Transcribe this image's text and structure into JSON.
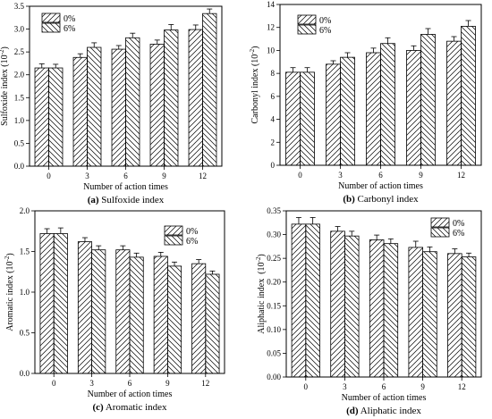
{
  "legend": {
    "series_a": "0%",
    "series_b": "6%"
  },
  "chart_data": [
    {
      "type": "bar",
      "caption_letter": "(a)",
      "caption_text": " Sulfoxide index",
      "xlabel": "Number of action times",
      "ylabel_main": "Sulfoxide index (10",
      "ylabel_exp": "-2",
      "ylabel_end": ")",
      "categories": [
        "0",
        "3",
        "6",
        "9",
        "12"
      ],
      "ylim": [
        0,
        3.5
      ],
      "yticks": [
        "0.0",
        "0.5",
        "1.0",
        "1.5",
        "2.0",
        "2.5",
        "3.0",
        "3.5"
      ],
      "legend_position": "top-left",
      "series": [
        {
          "name": "0%",
          "values": [
            2.15,
            2.38,
            2.56,
            2.67,
            2.99
          ],
          "errors": [
            0.09,
            0.08,
            0.08,
            0.09,
            0.1
          ]
        },
        {
          "name": "6%",
          "values": [
            2.15,
            2.6,
            2.81,
            2.98,
            3.34
          ],
          "errors": [
            0.08,
            0.1,
            0.1,
            0.12,
            0.1
          ]
        }
      ]
    },
    {
      "type": "bar",
      "caption_letter": "(b)",
      "caption_text": " Carbonyl index",
      "xlabel": "Number of action times",
      "ylabel_main": "Carbonyl index (10",
      "ylabel_exp": "-2",
      "ylabel_end": ")",
      "categories": [
        "0",
        "3",
        "6",
        "9",
        "12"
      ],
      "ylim": [
        0,
        14
      ],
      "yticks": [
        "0",
        "2",
        "4",
        "6",
        "8",
        "10",
        "12",
        "14"
      ],
      "legend_position": "top-left",
      "series": [
        {
          "name": "0%",
          "values": [
            8.1,
            8.8,
            9.8,
            10.0,
            10.8
          ],
          "errors": [
            0.4,
            0.3,
            0.4,
            0.4,
            0.4
          ]
        },
        {
          "name": "6%",
          "values": [
            8.1,
            9.4,
            10.6,
            11.4,
            12.1
          ],
          "errors": [
            0.4,
            0.4,
            0.5,
            0.5,
            0.5
          ]
        }
      ]
    },
    {
      "type": "bar",
      "caption_letter": "(c)",
      "caption_text": " Aromatic index",
      "xlabel": "Number of action times",
      "ylabel_main": "Aromatic index (10",
      "ylabel_exp": "-2",
      "ylabel_end": ")",
      "categories": [
        "0",
        "3",
        "6",
        "9",
        "12"
      ],
      "ylim": [
        0,
        2.0
      ],
      "yticks": [
        "0.0",
        "0.5",
        "1.0",
        "1.5",
        "2.0"
      ],
      "legend_position": "top-right",
      "series": [
        {
          "name": "0%",
          "values": [
            1.72,
            1.62,
            1.52,
            1.44,
            1.35
          ],
          "errors": [
            0.06,
            0.05,
            0.05,
            0.05,
            0.05
          ]
        },
        {
          "name": "6%",
          "values": [
            1.72,
            1.52,
            1.43,
            1.32,
            1.22
          ],
          "errors": [
            0.07,
            0.05,
            0.05,
            0.05,
            0.04
          ]
        }
      ]
    },
    {
      "type": "bar",
      "caption_letter": "(d)",
      "caption_text": " Aliphatic index",
      "xlabel": "Number of action times",
      "ylabel_main": "Aliphatic index  (10",
      "ylabel_exp": "-2",
      "ylabel_end": ")",
      "categories": [
        "0",
        "3",
        "6",
        "9",
        "12"
      ],
      "ylim": [
        0,
        0.35
      ],
      "yticks": [
        "0.00",
        "0.05",
        "0.10",
        "0.15",
        "0.20",
        "0.25",
        "0.30",
        "0.35"
      ],
      "legend_position": "top-right",
      "series": [
        {
          "name": "0%",
          "values": [
            0.322,
            0.307,
            0.289,
            0.273,
            0.26
          ],
          "errors": [
            0.014,
            0.01,
            0.01,
            0.013,
            0.01
          ]
        },
        {
          "name": "6%",
          "values": [
            0.322,
            0.297,
            0.281,
            0.264,
            0.253
          ],
          "errors": [
            0.014,
            0.01,
            0.01,
            0.01,
            0.008
          ]
        }
      ]
    }
  ]
}
